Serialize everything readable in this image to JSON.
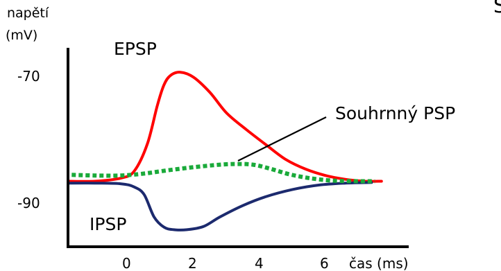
{
  "chart_data": {
    "type": "line",
    "ylabel_line1": "napětí",
    "ylabel_line2": "(mV)",
    "xlabel": "čas (ms)",
    "title_fragment": "S",
    "x_ticks": [
      0,
      2,
      4,
      6
    ],
    "x_tick_labels": [
      "0",
      "2",
      "4",
      "6"
    ],
    "y_ticks": [
      -70,
      -90
    ],
    "y_tick_labels": [
      "-70",
      "-90"
    ],
    "xlim": [
      -1.8,
      7.7
    ],
    "ylim": [
      -98,
      -64
    ],
    "series": [
      {
        "name": "EPSP",
        "color": "#ff0000",
        "dashed": false,
        "points": [
          [
            -1.8,
            -86.9
          ],
          [
            -1.0,
            -86.9
          ],
          [
            -0.2,
            -86.4
          ],
          [
            0.2,
            -85.3
          ],
          [
            0.6,
            -81.0
          ],
          [
            0.9,
            -75.0
          ],
          [
            1.1,
            -71.8
          ],
          [
            1.3,
            -70.3
          ],
          [
            1.6,
            -69.8
          ],
          [
            2.0,
            -70.6
          ],
          [
            2.5,
            -73.0
          ],
          [
            3.0,
            -76.2
          ],
          [
            3.6,
            -78.8
          ],
          [
            4.2,
            -81.2
          ],
          [
            4.8,
            -83.5
          ],
          [
            5.4,
            -85.0
          ],
          [
            6.0,
            -86.0
          ],
          [
            6.6,
            -86.6
          ],
          [
            7.2,
            -86.9
          ],
          [
            7.7,
            -86.9
          ]
        ]
      },
      {
        "name": "IPSP",
        "color": "#1c2a6e",
        "dashed": false,
        "points": [
          [
            -1.8,
            -87.2
          ],
          [
            -1.0,
            -87.2
          ],
          [
            -0.2,
            -87.3
          ],
          [
            0.2,
            -87.8
          ],
          [
            0.5,
            -89.0
          ],
          [
            0.8,
            -92.5
          ],
          [
            1.1,
            -94.1
          ],
          [
            1.4,
            -94.5
          ],
          [
            1.8,
            -94.5
          ],
          [
            2.3,
            -94.0
          ],
          [
            2.8,
            -92.5
          ],
          [
            3.5,
            -90.7
          ],
          [
            4.2,
            -89.3
          ],
          [
            5.0,
            -88.2
          ],
          [
            5.8,
            -87.5
          ],
          [
            6.6,
            -87.2
          ],
          [
            7.4,
            -87.1
          ]
        ]
      },
      {
        "name": "Souhrnný PSP",
        "color": "#1aaa3a",
        "dashed": true,
        "points": [
          [
            -1.7,
            -85.9
          ],
          [
            -1.0,
            -86.0
          ],
          [
            -0.2,
            -86.0
          ],
          [
            0.5,
            -85.7
          ],
          [
            1.2,
            -85.2
          ],
          [
            2.0,
            -84.7
          ],
          [
            2.8,
            -84.3
          ],
          [
            3.3,
            -84.2
          ],
          [
            3.8,
            -84.3
          ],
          [
            4.3,
            -84.9
          ],
          [
            4.9,
            -85.8
          ],
          [
            5.5,
            -86.4
          ],
          [
            6.2,
            -86.8
          ],
          [
            7.0,
            -86.9
          ],
          [
            7.5,
            -86.9
          ]
        ]
      }
    ],
    "annotation_line_color": "#000000"
  }
}
